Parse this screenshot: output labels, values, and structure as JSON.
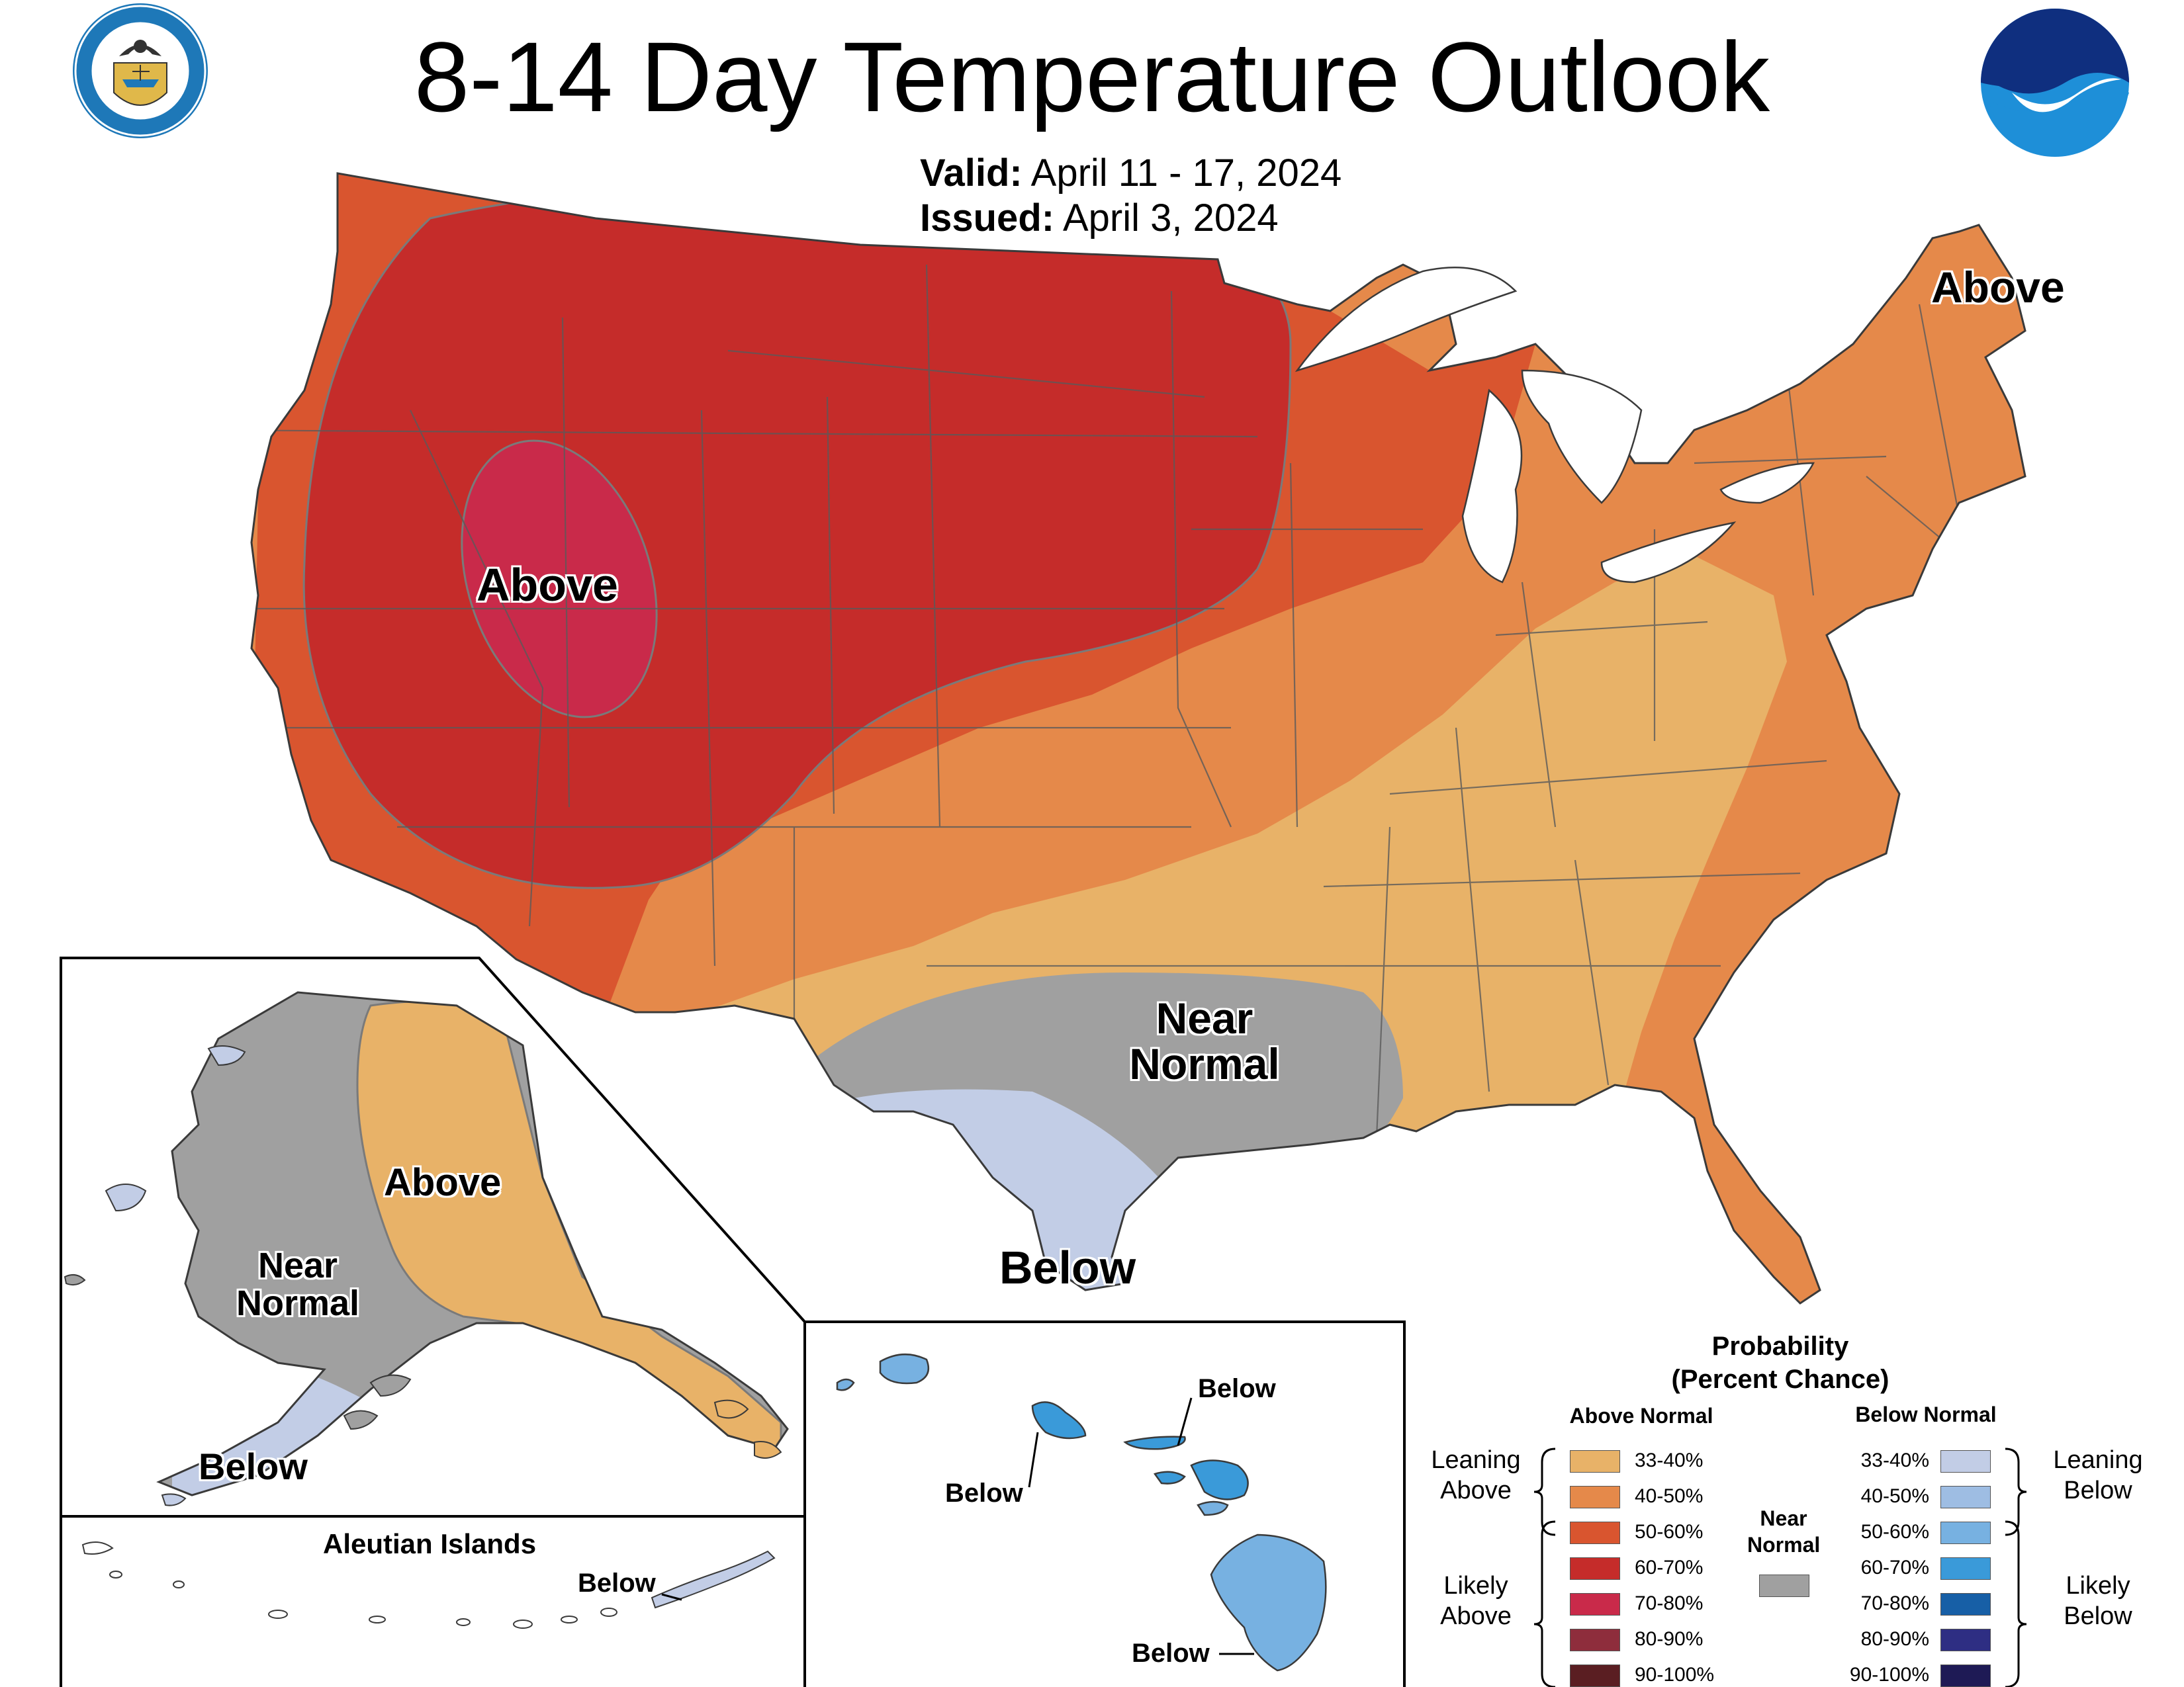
{
  "header": {
    "title": "8-14 Day Temperature Outlook",
    "valid_key": "Valid:",
    "valid_value": "April 11 - 17, 2024",
    "issued_key": "Issued:",
    "issued_value": "April 3, 2024"
  },
  "logos": {
    "commerce": "DEPARTMENT OF COMMERCE · UNITED STATES OF AMERICA",
    "noaa": "NOAA"
  },
  "map_labels": {
    "conus_above_west": "Above",
    "conus_above_maine": "Above",
    "conus_near_normal": "Near Normal",
    "conus_below_texas": "Below",
    "alaska_above": "Above",
    "alaska_near_normal": "Near Normal",
    "alaska_below": "Below",
    "aleutian_title": "Aleutian Islands",
    "aleutian_below": "Below",
    "hawaii_below_1": "Below",
    "hawaii_below_2": "Below",
    "hawaii_below_3": "Below"
  },
  "legend": {
    "title_line1": "Probability",
    "title_line2": "(Percent Chance)",
    "above_header": "Above Normal",
    "below_header": "Below Normal",
    "near_header": "Near Normal",
    "near_color": "#a0a0a0",
    "leaning_above": "Leaning Above",
    "likely_above": "Likely Above",
    "leaning_below": "Leaning Below",
    "likely_below": "Likely Below",
    "above_bins": [
      {
        "range": "33-40%",
        "color": "#e8b268"
      },
      {
        "range": "40-50%",
        "color": "#e5894a"
      },
      {
        "range": "50-60%",
        "color": "#d9552f"
      },
      {
        "range": "60-70%",
        "color": "#c52c2a"
      },
      {
        "range": "70-80%",
        "color": "#c92a4a"
      },
      {
        "range": "80-90%",
        "color": "#8e2d3c"
      },
      {
        "range": "90-100%",
        "color": "#5a1e22"
      }
    ],
    "below_bins": [
      {
        "range": "33-40%",
        "color": "#c2cde6"
      },
      {
        "range": "40-50%",
        "color": "#9ebde3"
      },
      {
        "range": "50-60%",
        "color": "#77b1e1"
      },
      {
        "range": "60-70%",
        "color": "#3a9ad9"
      },
      {
        "range": "70-80%",
        "color": "#175fa6"
      },
      {
        "range": "80-90%",
        "color": "#2e2e83"
      },
      {
        "range": "90-100%",
        "color": "#1e1a55"
      }
    ]
  }
}
